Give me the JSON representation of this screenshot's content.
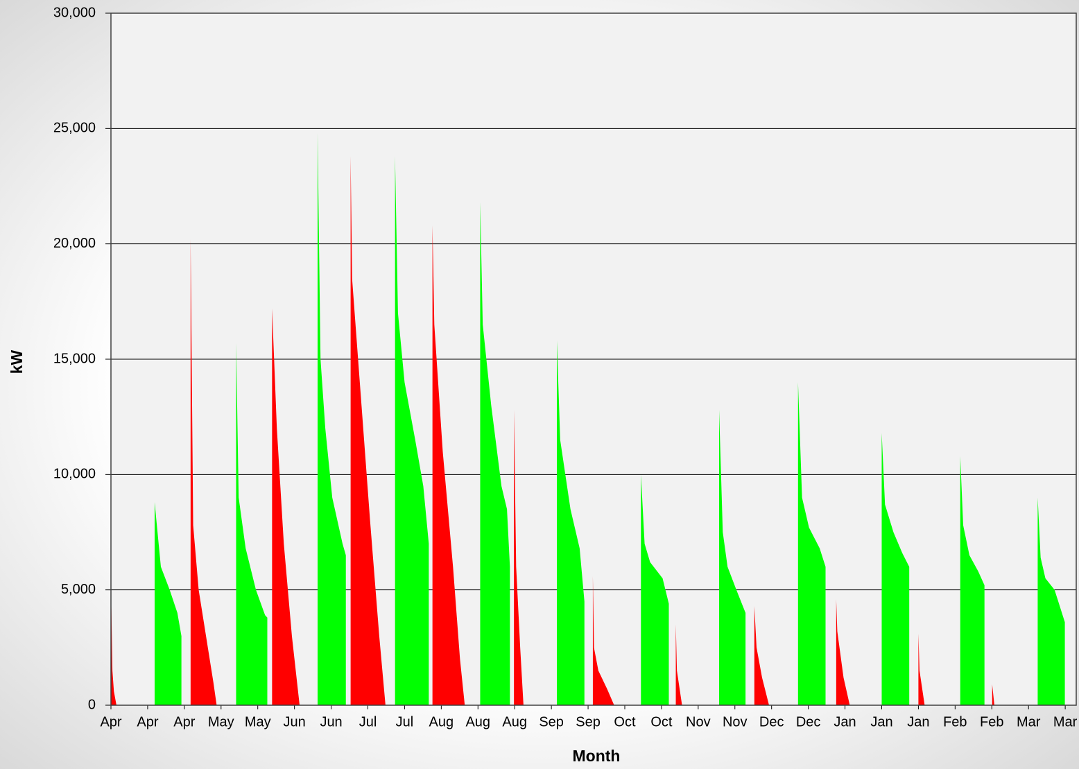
{
  "chart_data": {
    "type": "area",
    "x_label": "Month",
    "y_label": "kW",
    "xlim": [
      0,
      26.3
    ],
    "xticks": [
      {
        "value": 0,
        "label": "Apr"
      },
      {
        "value": 1,
        "label": "Apr"
      },
      {
        "value": 2,
        "label": "Apr"
      },
      {
        "value": 3,
        "label": "May"
      },
      {
        "value": 4,
        "label": "May"
      },
      {
        "value": 5,
        "label": "Jun"
      },
      {
        "value": 6,
        "label": "Jun"
      },
      {
        "value": 7,
        "label": "Jul"
      },
      {
        "value": 8,
        "label": "Jul"
      },
      {
        "value": 9,
        "label": "Aug"
      },
      {
        "value": 10,
        "label": "Aug"
      },
      {
        "value": 11,
        "label": "Aug"
      },
      {
        "value": 12,
        "label": "Sep"
      },
      {
        "value": 13,
        "label": "Sep"
      },
      {
        "value": 14,
        "label": "Oct"
      },
      {
        "value": 15,
        "label": "Oct"
      },
      {
        "value": 16,
        "label": "Nov"
      },
      {
        "value": 17,
        "label": "Nov"
      },
      {
        "value": 18,
        "label": "Dec"
      },
      {
        "value": 19,
        "label": "Dec"
      },
      {
        "value": 20,
        "label": "Jan"
      },
      {
        "value": 21,
        "label": "Jan"
      },
      {
        "value": 22,
        "label": "Jan"
      },
      {
        "value": 23,
        "label": "Feb"
      },
      {
        "value": 24,
        "label": "Feb"
      },
      {
        "value": 25,
        "label": "Mar"
      },
      {
        "value": 26,
        "label": "Mar"
      }
    ],
    "ylim": [
      0,
      30000
    ],
    "yticks": [
      0,
      {
        "value": 5000,
        "label": "5,000"
      },
      {
        "value": 10000,
        "label": "10,000"
      },
      {
        "value": 15000,
        "label": "15,000"
      },
      {
        "value": 20000,
        "label": "20,000"
      },
      {
        "value": 25000,
        "label": "25,000"
      },
      {
        "value": 30000,
        "label": "30,000"
      }
    ],
    "grid": true,
    "series": [
      {
        "color": "#00ff00",
        "x": [
          1.19,
          1.36,
          1.6,
          1.81,
          1.92,
          null,
          3.41,
          3.48,
          3.67,
          3.95,
          4.2,
          4.26,
          null,
          5.63,
          5.71,
          5.84,
          6.03,
          6.31,
          6.4,
          null,
          7.74,
          7.82,
          8.0,
          8.29,
          8.51,
          8.66,
          null,
          10.06,
          10.13,
          10.36,
          10.64,
          10.79,
          10.87,
          null,
          12.15,
          12.24,
          12.52,
          12.77,
          12.9,
          null,
          14.44,
          14.54,
          14.69,
          15.03,
          15.2,
          null,
          16.57,
          16.67,
          16.8,
          17.04,
          17.29,
          null,
          18.72,
          18.83,
          19.02,
          19.31,
          19.47,
          null,
          21.0,
          21.09,
          21.32,
          21.56,
          21.75,
          null,
          23.14,
          23.22,
          23.39,
          23.63,
          23.8,
          null,
          25.25,
          25.33,
          25.46,
          25.71,
          25.99
        ],
        "values": [
          8800,
          6000,
          5000,
          4000,
          3000,
          null,
          15700,
          9000,
          6800,
          5000,
          3900,
          3800,
          null,
          24800,
          15000,
          12000,
          9000,
          7000,
          6500,
          null,
          23800,
          17000,
          14000,
          11500,
          9500,
          7000,
          null,
          21800,
          16500,
          13000,
          9500,
          8500,
          6000,
          null,
          15800,
          11500,
          8500,
          6800,
          4500,
          null,
          10000,
          7000,
          6200,
          5500,
          4400,
          null,
          12800,
          7500,
          6000,
          5000,
          4000,
          null,
          14000,
          9000,
          7700,
          6800,
          6000,
          null,
          11800,
          8700,
          7500,
          6600,
          6000,
          null,
          10800,
          7800,
          6500,
          5800,
          5200,
          null,
          9000,
          6400,
          5500,
          5000,
          3600
        ]
      },
      {
        "color": "#ff0000",
        "x": [
          0,
          0.04,
          0.08,
          0.15,
          null,
          2.17,
          2.24,
          2.39,
          2.64,
          2.79,
          2.88,
          null,
          4.39,
          4.52,
          4.71,
          4.93,
          5.14,
          null,
          6.53,
          6.57,
          6.78,
          7.06,
          7.31,
          7.48,
          null,
          8.76,
          8.81,
          9.04,
          9.32,
          9.51,
          9.64,
          null,
          10.98,
          11.04,
          11.15,
          11.24,
          null,
          13.13,
          13.16,
          13.28,
          13.52,
          13.71,
          null,
          15.39,
          15.42,
          15.56,
          null,
          17.53,
          17.59,
          17.74,
          17.93,
          null,
          19.76,
          19.79,
          19.96,
          20.13,
          null,
          22.0,
          22.03,
          22.17,
          null,
          24.01,
          24.07
        ],
        "values": [
          5200,
          1500,
          600,
          0,
          null,
          20200,
          7800,
          5000,
          2500,
          1000,
          0,
          null,
          17200,
          12000,
          7000,
          3000,
          0,
          null,
          23800,
          18500,
          14000,
          8000,
          3000,
          0,
          null,
          20800,
          16500,
          11000,
          6000,
          2000,
          0,
          null,
          12800,
          6000,
          2500,
          0,
          null,
          5600,
          2500,
          1500,
          700,
          0,
          null,
          3500,
          1500,
          0,
          null,
          4300,
          2500,
          1200,
          0,
          null,
          4600,
          3200,
          1200,
          0,
          null,
          3100,
          1500,
          0,
          null,
          900,
          0
        ]
      }
    ]
  }
}
